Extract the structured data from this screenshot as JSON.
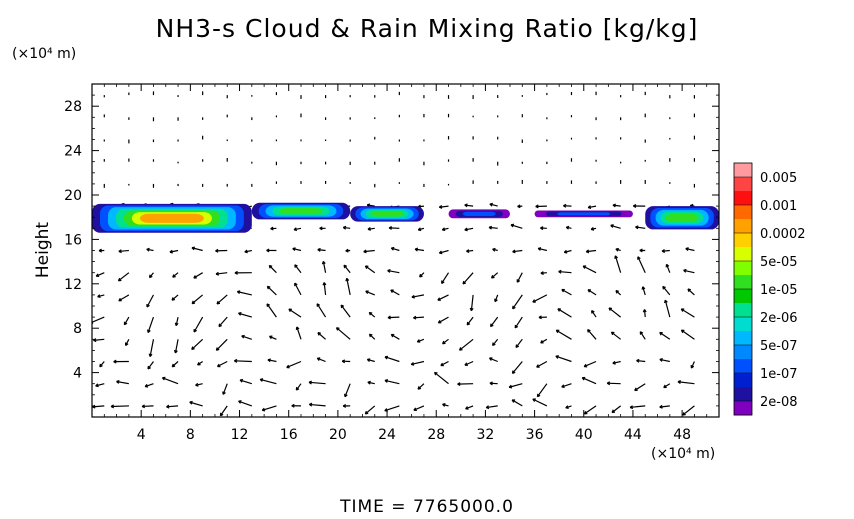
{
  "chart_data": {
    "type": "heatmap",
    "title": "NH3-s Cloud & Rain Mixing Ratio [kg/kg]",
    "ylabel": "Height",
    "x_unit": "(×10⁴ m)",
    "y_unit": "(×10⁴ m)",
    "footer": "TIME = 7765000.0",
    "xlim": [
      0,
      51
    ],
    "ylim": [
      0,
      30
    ],
    "x_ticks": [
      4,
      8,
      12,
      16,
      20,
      24,
      28,
      32,
      36,
      40,
      44,
      48
    ],
    "y_ticks": [
      4,
      8,
      12,
      16,
      20,
      24,
      28
    ],
    "colorbar": {
      "labels": [
        "0.005",
        "0.001",
        "0.0002",
        "5e-05",
        "1e-05",
        "2e-06",
        "5e-07",
        "1e-07",
        "2e-08"
      ],
      "colors": [
        "#ff9aa0",
        "#ff4444",
        "#ff1010",
        "#ff6a00",
        "#ffa200",
        "#ffd000",
        "#d8ff00",
        "#80ff00",
        "#30e020",
        "#00c800",
        "#00e090",
        "#00dcd0",
        "#00b8ff",
        "#0088ff",
        "#0050ff",
        "#0020d0",
        "#2010a0",
        "#8000c0"
      ]
    },
    "cloud_layer": {
      "height_range": [
        16.5,
        19.5
      ],
      "x_extent": [
        0,
        51
      ],
      "segments": [
        {
          "x": [
            0,
            13
          ],
          "y": [
            16.6,
            19.2
          ],
          "max_level": "0.0002"
        },
        {
          "x": [
            13,
            21
          ],
          "y": [
            17.8,
            19.3
          ],
          "max_level": "1e-05"
        },
        {
          "x": [
            21,
            27
          ],
          "y": [
            17.6,
            19.0
          ],
          "max_level": "1e-05"
        },
        {
          "x": [
            29,
            34
          ],
          "y": [
            17.9,
            18.7
          ],
          "max_level": "5e-07"
        },
        {
          "x": [
            36,
            44
          ],
          "y": [
            18.0,
            18.6
          ],
          "max_level": "5e-07"
        },
        {
          "x": [
            45,
            51
          ],
          "y": [
            16.9,
            19.0
          ],
          "max_level": "5e-06"
        }
      ]
    },
    "wind_vectors": {
      "grid_dx": 2,
      "grid_dy": 2,
      "description_pattern": "strong circulation cells below 14; weak vectors above 20"
    }
  }
}
